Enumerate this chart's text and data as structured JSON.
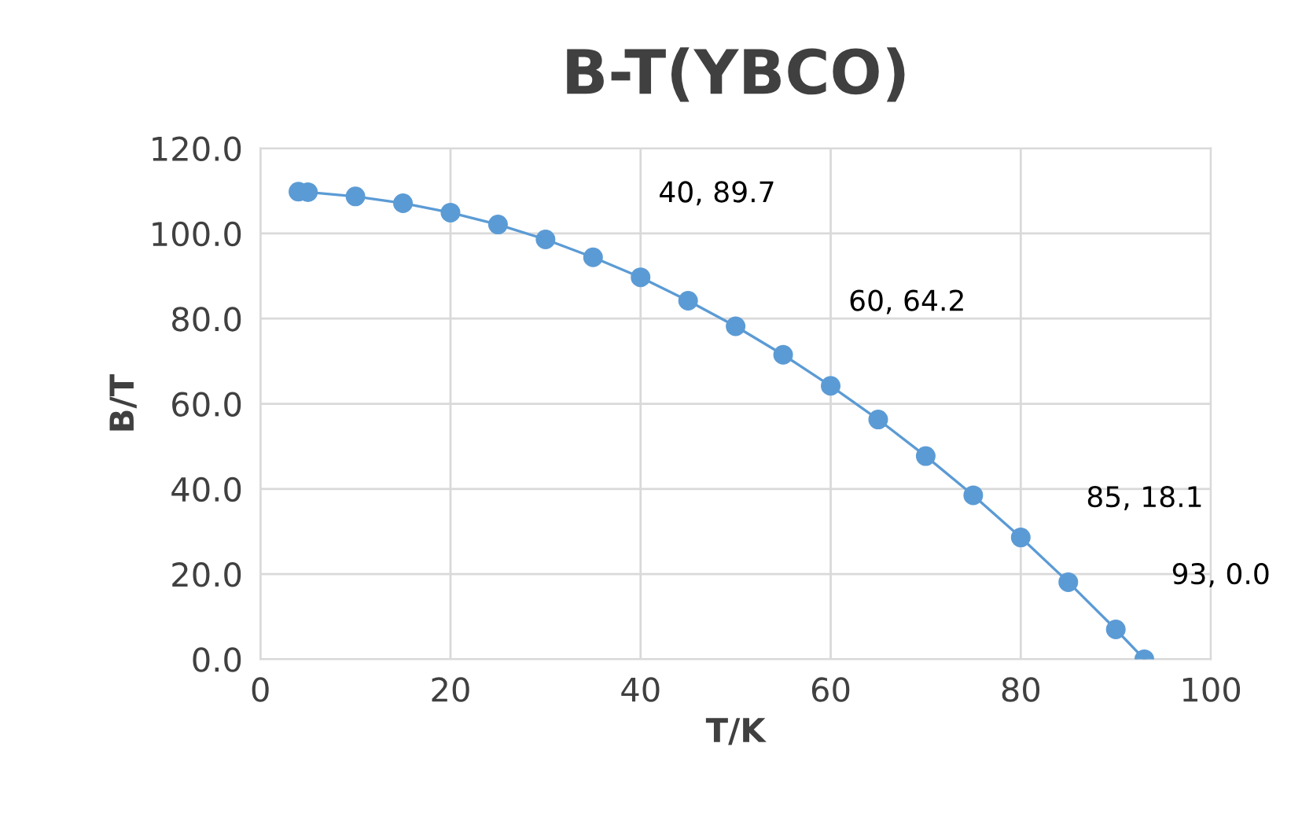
{
  "chart_data": {
    "type": "line",
    "title": "B-T(YBCO)",
    "xlabel": "T/K",
    "ylabel": "B/T",
    "series": [
      {
        "color": "#5b9bd5",
        "x": [
          4,
          5,
          10,
          15,
          20,
          25,
          30,
          35,
          40,
          45,
          50,
          55,
          60,
          65,
          70,
          75,
          80,
          85,
          90,
          93
        ],
        "values": [
          109.8,
          109.7,
          108.7,
          107.1,
          104.9,
          102.1,
          98.6,
          94.4,
          89.7,
          84.2,
          78.2,
          71.5,
          64.2,
          56.3,
          47.7,
          38.5,
          28.6,
          18.1,
          7.0,
          0.0
        ]
      }
    ],
    "annotations": [
      {
        "text": "40, 89.7",
        "x": 40,
        "y": 89.7
      },
      {
        "text": "60, 64.2",
        "x": 60,
        "y": 64.2
      },
      {
        "text": "85, 18.1",
        "x": 85,
        "y": 18.1
      },
      {
        "text": "93, 0.0",
        "x": 93,
        "y": 0.0
      }
    ],
    "xlim": [
      0,
      100
    ],
    "xticks": [
      0,
      20,
      40,
      60,
      80,
      100
    ],
    "ylim": [
      0,
      120
    ],
    "yticks": [
      {
        "value": 0,
        "label": "0.0"
      },
      {
        "value": 20,
        "label": "20.0"
      },
      {
        "value": 40,
        "label": "40.0"
      },
      {
        "value": 60,
        "label": "60.0"
      },
      {
        "value": 80,
        "label": "80.0"
      },
      {
        "value": 100,
        "label": "100.0"
      },
      {
        "value": 120,
        "label": "120.0"
      }
    ],
    "grid": true,
    "marker": "circle",
    "line_style": "solid"
  }
}
